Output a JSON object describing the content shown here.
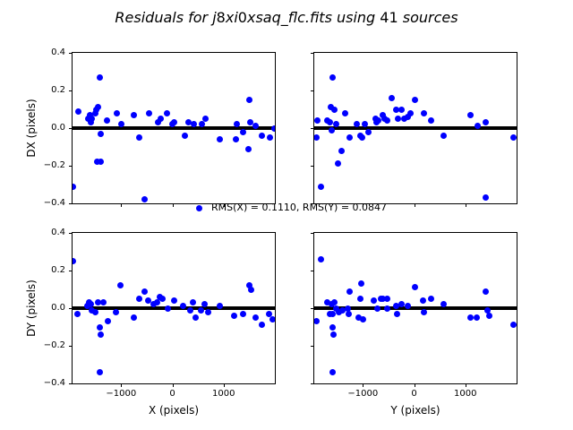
{
  "title": {
    "text": "Residuals for j8xi0xsaq_flc.fits using 41 sources",
    "parts": [
      {
        "text": "Residuals for j",
        "italic": true
      },
      {
        "text": "8",
        "italic": false
      },
      {
        "text": "xi",
        "italic": true
      },
      {
        "text": "0",
        "italic": false
      },
      {
        "text": "xsaq_flc.fits using ",
        "italic": true
      },
      {
        "text": "41",
        "italic": false
      },
      {
        "text": " sources",
        "italic": true
      }
    ]
  },
  "legend": {
    "label": "RMS(X) = 0.1110, RMS(Y) = 0.0847",
    "marker": "circle",
    "marker_color": "#0000ff",
    "position": "centered below top row of subplots"
  },
  "colors": {
    "marker": "#0000ff",
    "zero_line": "#000000",
    "spine": "#000000",
    "text": "#000000",
    "background": "#ffffff"
  },
  "chart_data": [
    {
      "type": "scatter",
      "id": "dx-vs-x",
      "ylabel": "DX (pixels)",
      "xlabel": null,
      "xlim": [
        -1950,
        2000
      ],
      "ylim": [
        -0.4,
        0.4
      ],
      "xticks": [
        -1000,
        0,
        1000
      ],
      "xtick_labels": [
        "−1000",
        "0",
        "1000"
      ],
      "yticks": [
        0.4,
        0.2,
        0.0,
        -0.2,
        -0.4
      ],
      "ytick_labels": [
        "0.4",
        "0.2",
        "0.0",
        "−0.2",
        "−0.4"
      ],
      "show_xtick_labels": false,
      "show_ytick_labels": true,
      "grid": false,
      "zero_line_y": 0,
      "points": [
        [
          -1945,
          -0.31
        ],
        [
          -1830,
          0.09
        ],
        [
          -1637,
          0.05
        ],
        [
          -1614,
          0.07
        ],
        [
          -1596,
          0.03
        ],
        [
          -1579,
          0.05
        ],
        [
          -1509,
          0.08
        ],
        [
          -1479,
          0.1
        ],
        [
          -1475,
          -0.18
        ],
        [
          -1451,
          0.11
        ],
        [
          -1421,
          0.27
        ],
        [
          -1405,
          -0.18
        ],
        [
          -1391,
          -0.03
        ],
        [
          -1275,
          0.04
        ],
        [
          -1082,
          0.08
        ],
        [
          -994,
          0.02
        ],
        [
          -760,
          0.07
        ],
        [
          -649,
          -0.05
        ],
        [
          -544,
          -0.38
        ],
        [
          -456,
          0.08
        ],
        [
          -281,
          0.03
        ],
        [
          -222,
          0.05
        ],
        [
          -105,
          0.08
        ],
        [
          0,
          0.02
        ],
        [
          40,
          0.03
        ],
        [
          246,
          -0.04
        ],
        [
          316,
          0.03
        ],
        [
          421,
          0.02
        ],
        [
          567,
          0.02
        ],
        [
          644,
          0.05
        ],
        [
          918,
          -0.06
        ],
        [
          1240,
          -0.06
        ],
        [
          1258,
          0.02
        ],
        [
          1386,
          -0.02
        ],
        [
          1486,
          -0.11
        ],
        [
          1503,
          0.15
        ],
        [
          1514,
          0.03
        ],
        [
          1632,
          0.01
        ],
        [
          1749,
          -0.04
        ],
        [
          1912,
          -0.05
        ],
        [
          1990,
          0.0
        ]
      ]
    },
    {
      "type": "scatter",
      "id": "dx-vs-y",
      "ylabel": null,
      "xlabel": null,
      "xlim": [
        -1950,
        2000
      ],
      "ylim": [
        -0.4,
        0.4
      ],
      "xticks": [
        -1000,
        0,
        1000
      ],
      "xtick_labels": [
        "−1000",
        "0",
        "1000"
      ],
      "yticks": [
        0.4,
        0.2,
        0.0,
        -0.2,
        -0.4
      ],
      "ytick_labels": [
        "0.4",
        "0.2",
        "0.0",
        "−0.2",
        "−0.4"
      ],
      "show_xtick_labels": false,
      "show_ytick_labels": false,
      "grid": false,
      "zero_line_y": 0,
      "points": [
        [
          -1907,
          -0.05
        ],
        [
          -1889,
          0.04
        ],
        [
          -1819,
          -0.31
        ],
        [
          -1702,
          0.04
        ],
        [
          -1644,
          0.03
        ],
        [
          -1632,
          0.11
        ],
        [
          -1614,
          -0.01
        ],
        [
          -1596,
          0.27
        ],
        [
          -1556,
          0.1
        ],
        [
          -1526,
          0.02
        ],
        [
          -1479,
          -0.19
        ],
        [
          -1421,
          -0.12
        ],
        [
          -1339,
          0.08
        ],
        [
          -1263,
          -0.05
        ],
        [
          -1118,
          0.02
        ],
        [
          -1058,
          -0.04
        ],
        [
          -1012,
          -0.05
        ],
        [
          -970,
          0.02
        ],
        [
          -895,
          -0.02
        ],
        [
          -754,
          0.05
        ],
        [
          -737,
          0.03
        ],
        [
          -707,
          0.04
        ],
        [
          -619,
          0.07
        ],
        [
          -579,
          0.05
        ],
        [
          -532,
          0.04
        ],
        [
          -444,
          0.16
        ],
        [
          -356,
          0.1
        ],
        [
          -310,
          0.05
        ],
        [
          -240,
          0.1
        ],
        [
          -193,
          0.05
        ],
        [
          -123,
          0.06
        ],
        [
          -65,
          0.08
        ],
        [
          12,
          0.15
        ],
        [
          198,
          0.08
        ],
        [
          328,
          0.04
        ],
        [
          579,
          -0.04
        ],
        [
          1105,
          0.07
        ],
        [
          1240,
          0.01
        ],
        [
          1398,
          0.03
        ],
        [
          1398,
          -0.37
        ],
        [
          1942,
          -0.05
        ]
      ]
    },
    {
      "type": "scatter",
      "id": "dy-vs-x",
      "ylabel": "DY (pixels)",
      "xlabel": "X (pixels)",
      "xlim": [
        -1950,
        2000
      ],
      "ylim": [
        -0.4,
        0.4
      ],
      "xticks": [
        -1000,
        0,
        1000
      ],
      "xtick_labels": [
        "−1000",
        "0",
        "1000"
      ],
      "yticks": [
        0.4,
        0.2,
        0.0,
        -0.2,
        -0.4
      ],
      "ytick_labels": [
        "0.4",
        "0.2",
        "0.0",
        "−0.2",
        "−0.4"
      ],
      "show_xtick_labels": true,
      "show_ytick_labels": true,
      "grid": false,
      "zero_line_y": 0,
      "points": [
        [
          -1945,
          0.25
        ],
        [
          -1860,
          -0.03
        ],
        [
          -1654,
          0.01
        ],
        [
          -1626,
          0.03
        ],
        [
          -1596,
          0.02
        ],
        [
          -1567,
          -0.01
        ],
        [
          -1509,
          -0.02
        ],
        [
          -1451,
          0.03
        ],
        [
          -1421,
          -0.1
        ],
        [
          -1409,
          -0.34
        ],
        [
          -1404,
          -0.14
        ],
        [
          -1351,
          0.03
        ],
        [
          -1263,
          -0.07
        ],
        [
          -1100,
          -0.02
        ],
        [
          -1012,
          0.12
        ],
        [
          -749,
          -0.05
        ],
        [
          -649,
          0.05
        ],
        [
          -544,
          0.09
        ],
        [
          -468,
          0.04
        ],
        [
          -368,
          0.02
        ],
        [
          -292,
          0.03
        ],
        [
          -240,
          0.06
        ],
        [
          -193,
          0.05
        ],
        [
          -93,
          0.0
        ],
        [
          40,
          0.04
        ],
        [
          216,
          0.01
        ],
        [
          345,
          -0.01
        ],
        [
          404,
          0.03
        ],
        [
          451,
          -0.05
        ],
        [
          556,
          -0.01
        ],
        [
          626,
          0.02
        ],
        [
          696,
          -0.02
        ],
        [
          918,
          0.01
        ],
        [
          1211,
          -0.04
        ],
        [
          1386,
          -0.03
        ],
        [
          1503,
          0.12
        ],
        [
          1532,
          0.1
        ],
        [
          1620,
          -0.05
        ],
        [
          1749,
          -0.09
        ],
        [
          1884,
          -0.03
        ],
        [
          1960,
          -0.06
        ]
      ]
    },
    {
      "type": "scatter",
      "id": "dy-vs-y",
      "ylabel": null,
      "xlabel": "Y (pixels)",
      "xlim": [
        -1950,
        2000
      ],
      "ylim": [
        -0.4,
        0.4
      ],
      "xticks": [
        -1000,
        0,
        1000
      ],
      "xtick_labels": [
        "−1000",
        "0",
        "1000"
      ],
      "yticks": [
        0.4,
        0.2,
        0.0,
        -0.2,
        -0.4
      ],
      "ytick_labels": [
        "0.4",
        "0.2",
        "0.0",
        "−0.2",
        "−0.4"
      ],
      "show_xtick_labels": true,
      "show_ytick_labels": false,
      "grid": false,
      "zero_line_y": 0,
      "points": [
        [
          -1907,
          -0.07
        ],
        [
          -1819,
          0.26
        ],
        [
          -1702,
          0.03
        ],
        [
          -1644,
          -0.03
        ],
        [
          -1614,
          0.02
        ],
        [
          -1596,
          -0.03
        ],
        [
          -1596,
          -0.1
        ],
        [
          -1596,
          -0.34
        ],
        [
          -1579,
          -0.14
        ],
        [
          -1556,
          0.03
        ],
        [
          -1526,
          0.0
        ],
        [
          -1468,
          -0.02
        ],
        [
          -1404,
          -0.01
        ],
        [
          -1287,
          0.0
        ],
        [
          -1281,
          -0.03
        ],
        [
          -1263,
          0.09
        ],
        [
          -1088,
          -0.05
        ],
        [
          -1047,
          0.05
        ],
        [
          -1030,
          0.13
        ],
        [
          -1000,
          -0.06
        ],
        [
          -795,
          0.04
        ],
        [
          -719,
          0.0
        ],
        [
          -649,
          0.05
        ],
        [
          -619,
          0.05
        ],
        [
          -532,
          0.05
        ],
        [
          -521,
          0.0
        ],
        [
          -356,
          0.01
        ],
        [
          -328,
          -0.03
        ],
        [
          -240,
          0.02
        ],
        [
          -123,
          0.01
        ],
        [
          23,
          0.11
        ],
        [
          170,
          0.04
        ],
        [
          198,
          -0.02
        ],
        [
          328,
          0.05
        ],
        [
          579,
          0.02
        ],
        [
          1105,
          -0.05
        ],
        [
          1223,
          -0.05
        ],
        [
          1398,
          0.09
        ],
        [
          1439,
          -0.01
        ],
        [
          1474,
          -0.04
        ],
        [
          1942,
          -0.09
        ]
      ]
    }
  ]
}
